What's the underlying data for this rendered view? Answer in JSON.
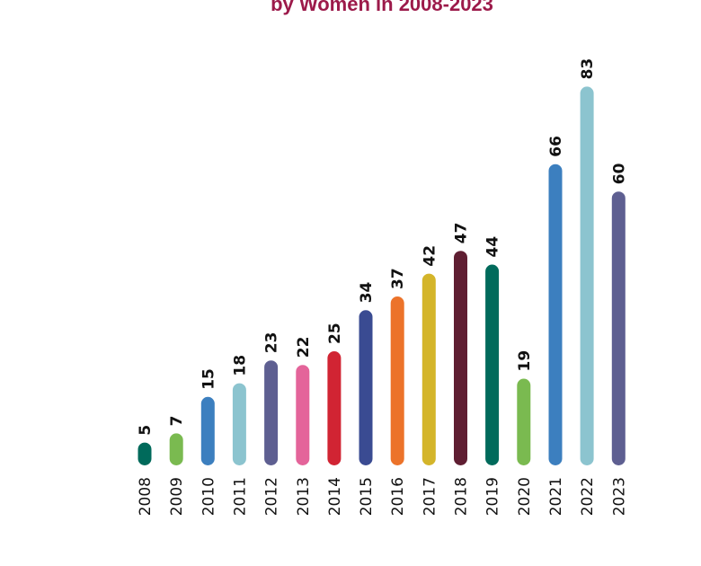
{
  "chart_data": {
    "type": "bar",
    "title": "by Women in 2008-2023",
    "categories": [
      "2008",
      "2009",
      "2010",
      "2011",
      "2012",
      "2013",
      "2014",
      "2015",
      "2016",
      "2017",
      "2018",
      "2019",
      "2020",
      "2021",
      "2022",
      "2023"
    ],
    "values": [
      5,
      7,
      15,
      18,
      23,
      22,
      25,
      34,
      37,
      42,
      47,
      44,
      19,
      66,
      83,
      60
    ],
    "colors": [
      "#006a5b",
      "#7aba50",
      "#3c7fbf",
      "#8cc4cf",
      "#5e5f91",
      "#e4649a",
      "#d12433",
      "#3a4b92",
      "#ec732a",
      "#d4b52a",
      "#5f1e32",
      "#006a5b",
      "#7aba50",
      "#3c7fbf",
      "#8cc4cf",
      "#5e5f91"
    ],
    "data_labels": true,
    "grid": false,
    "xlabel": "",
    "ylabel": ""
  }
}
